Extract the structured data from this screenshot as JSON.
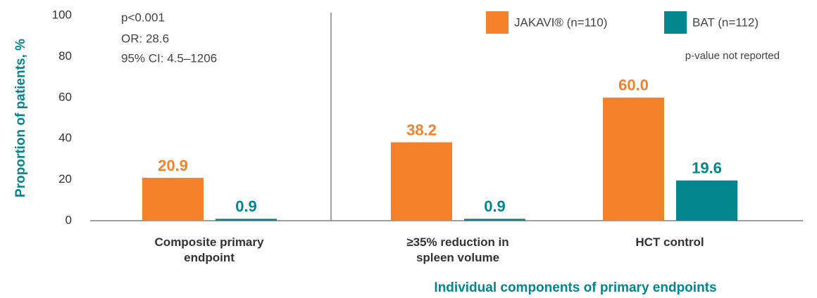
{
  "chart_data": {
    "type": "bar",
    "categories": [
      "Composite primary endpoint",
      "≥35% reduction in spleen volume",
      "HCT control"
    ],
    "series": [
      {
        "name": "JAKAVI® (n=110)",
        "color": "#f5822a",
        "values": [
          20.9,
          38.2,
          60.0
        ],
        "value_labels": [
          "20.9",
          "38.2",
          "60.0"
        ]
      },
      {
        "name": "BAT (n=112)",
        "color": "#00868f",
        "values": [
          0.9,
          0.9,
          19.6
        ],
        "value_labels": [
          "0.9",
          "0.9",
          "19.6"
        ]
      }
    ],
    "y_label": "Proportion of patients, %",
    "ylim": [
      0,
      100
    ],
    "yticks": [
      0,
      20,
      40,
      60,
      80,
      100
    ],
    "annotations": [
      "p<0.001",
      "OR: 28.6",
      "95% CI: 4.5–1206",
      "p-value not reported"
    ],
    "x_group_label": "Individual components of primary endpoints"
  }
}
